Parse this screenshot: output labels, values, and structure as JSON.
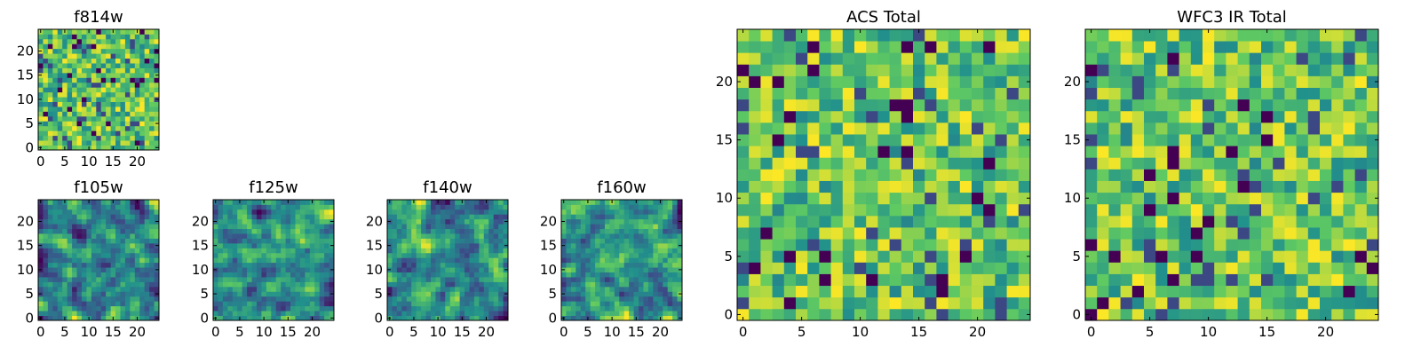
{
  "chart_data": [
    {
      "type": "heatmap",
      "title": "f814w",
      "xlabel": "",
      "ylabel": "",
      "xlim": [
        -0.5,
        24.5
      ],
      "ylim": [
        -0.5,
        24.5
      ],
      "xticks": [
        0,
        5,
        10,
        15,
        20
      ],
      "yticks": [
        0,
        5,
        10,
        15,
        20
      ],
      "colormap": "viridis",
      "grid_size": [
        25,
        25
      ],
      "texture": "noisy",
      "seed": 11
    },
    {
      "type": "heatmap",
      "title": "f105w",
      "xlabel": "",
      "ylabel": "",
      "xlim": [
        -0.5,
        24.5
      ],
      "ylim": [
        -0.5,
        24.5
      ],
      "xticks": [
        0,
        5,
        10,
        15,
        20
      ],
      "yticks": [
        0,
        5,
        10,
        15,
        20
      ],
      "colormap": "viridis",
      "grid_size": [
        25,
        25
      ],
      "texture": "smooth",
      "seed": 23
    },
    {
      "type": "heatmap",
      "title": "f125w",
      "xlabel": "",
      "ylabel": "",
      "xlim": [
        -0.5,
        24.5
      ],
      "ylim": [
        -0.5,
        24.5
      ],
      "xticks": [
        0,
        5,
        10,
        15,
        20
      ],
      "yticks": [
        0,
        5,
        10,
        15,
        20
      ],
      "colormap": "viridis",
      "grid_size": [
        25,
        25
      ],
      "texture": "smooth",
      "seed": 37
    },
    {
      "type": "heatmap",
      "title": "f140w",
      "xlabel": "",
      "ylabel": "",
      "xlim": [
        -0.5,
        24.5
      ],
      "ylim": [
        -0.5,
        24.5
      ],
      "xticks": [
        0,
        5,
        10,
        15,
        20
      ],
      "yticks": [
        0,
        5,
        10,
        15,
        20
      ],
      "colormap": "viridis",
      "grid_size": [
        25,
        25
      ],
      "texture": "smooth",
      "seed": 41
    },
    {
      "type": "heatmap",
      "title": "f160w",
      "xlabel": "",
      "ylabel": "",
      "xlim": [
        -0.5,
        24.5
      ],
      "ylim": [
        -0.5,
        24.5
      ],
      "xticks": [
        0,
        5,
        10,
        15,
        20
      ],
      "yticks": [
        0,
        5,
        10,
        15,
        20
      ],
      "colormap": "viridis",
      "grid_size": [
        25,
        25
      ],
      "texture": "smooth",
      "seed": 53
    },
    {
      "type": "heatmap",
      "title": "ACS Total",
      "xlabel": "",
      "ylabel": "",
      "xlim": [
        -0.5,
        24.5
      ],
      "ylim": [
        -0.5,
        24.5
      ],
      "xticks": [
        0,
        5,
        10,
        15,
        20
      ],
      "yticks": [
        0,
        5,
        10,
        15,
        20
      ],
      "colormap": "viridis",
      "grid_size": [
        25,
        25
      ],
      "texture": "noisy",
      "seed": 67
    },
    {
      "type": "heatmap",
      "title": "WFC3 IR Total",
      "xlabel": "",
      "ylabel": "",
      "xlim": [
        -0.5,
        24.5
      ],
      "ylim": [
        -0.5,
        24.5
      ],
      "xticks": [
        0,
        5,
        10,
        15,
        20
      ],
      "yticks": [
        0,
        5,
        10,
        15,
        20
      ],
      "colormap": "viridis",
      "grid_size": [
        25,
        25
      ],
      "texture": "noisy",
      "seed": 79
    }
  ],
  "colors": {
    "background": "#ffffff",
    "axes": "#000000",
    "viridis_stops": [
      "#440154",
      "#3b528b",
      "#21918c",
      "#5ec962",
      "#fde725"
    ]
  }
}
